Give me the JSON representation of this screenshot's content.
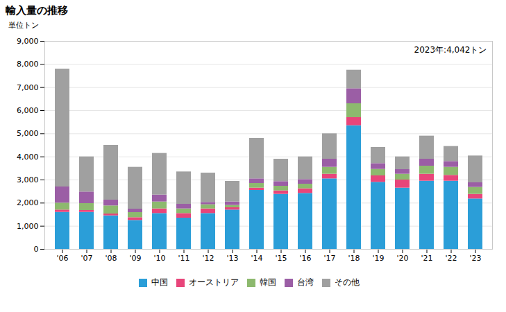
{
  "chart_data": {
    "type": "bar",
    "stacked": true,
    "title": "輸入量の推移",
    "ylabel": "単位トン",
    "annotation": "2023年:4,042トン",
    "categories": [
      "'06",
      "'07",
      "'08",
      "'09",
      "'10",
      "'11",
      "'12",
      "'13",
      "'14",
      "'15",
      "'16",
      "'17",
      "'18",
      "'19",
      "'20",
      "'21",
      "'22",
      "'23"
    ],
    "series": [
      {
        "name": "中国",
        "color": "#2B9ED8",
        "values": [
          1600,
          1600,
          1450,
          1250,
          1550,
          1350,
          1550,
          1700,
          2550,
          2380,
          2420,
          3050,
          5350,
          2900,
          2650,
          2950,
          2950,
          2180
        ]
      },
      {
        "name": "オーストリア",
        "color": "#E8457A",
        "values": [
          100,
          80,
          80,
          120,
          200,
          200,
          200,
          100,
          100,
          150,
          200,
          200,
          350,
          280,
          350,
          300,
          250,
          200
        ]
      },
      {
        "name": "韓国",
        "color": "#8DB96E",
        "values": [
          300,
          300,
          350,
          220,
          300,
          200,
          180,
          100,
          200,
          200,
          200,
          300,
          600,
          280,
          250,
          350,
          350,
          300
        ]
      },
      {
        "name": "台湾",
        "color": "#9B5EA5",
        "values": [
          700,
          500,
          250,
          150,
          300,
          200,
          100,
          150,
          200,
          200,
          200,
          350,
          650,
          250,
          200,
          300,
          250,
          200
        ]
      },
      {
        "name": "その他",
        "color": "#A0A0A0",
        "values": [
          5100,
          1520,
          2370,
          1810,
          1800,
          1400,
          1270,
          890,
          1750,
          970,
          980,
          1100,
          800,
          700,
          550,
          1000,
          650,
          1160
        ]
      }
    ],
    "ylim": [
      0,
      9000
    ],
    "yticks": [
      0,
      {
        "value": 1000,
        "label": "1,000"
      },
      {
        "value": 2000,
        "label": "2,000"
      },
      {
        "value": 3000,
        "label": "3,000"
      },
      {
        "value": 4000,
        "label": "4,000"
      },
      {
        "value": 5000,
        "label": "5,000"
      },
      {
        "value": 6000,
        "label": "6,000"
      },
      {
        "value": 7000,
        "label": "7,000"
      },
      {
        "value": 8000,
        "label": "8,000"
      },
      {
        "value": 9000,
        "label": "9,000"
      }
    ],
    "grid": true,
    "legend": "bottom"
  }
}
